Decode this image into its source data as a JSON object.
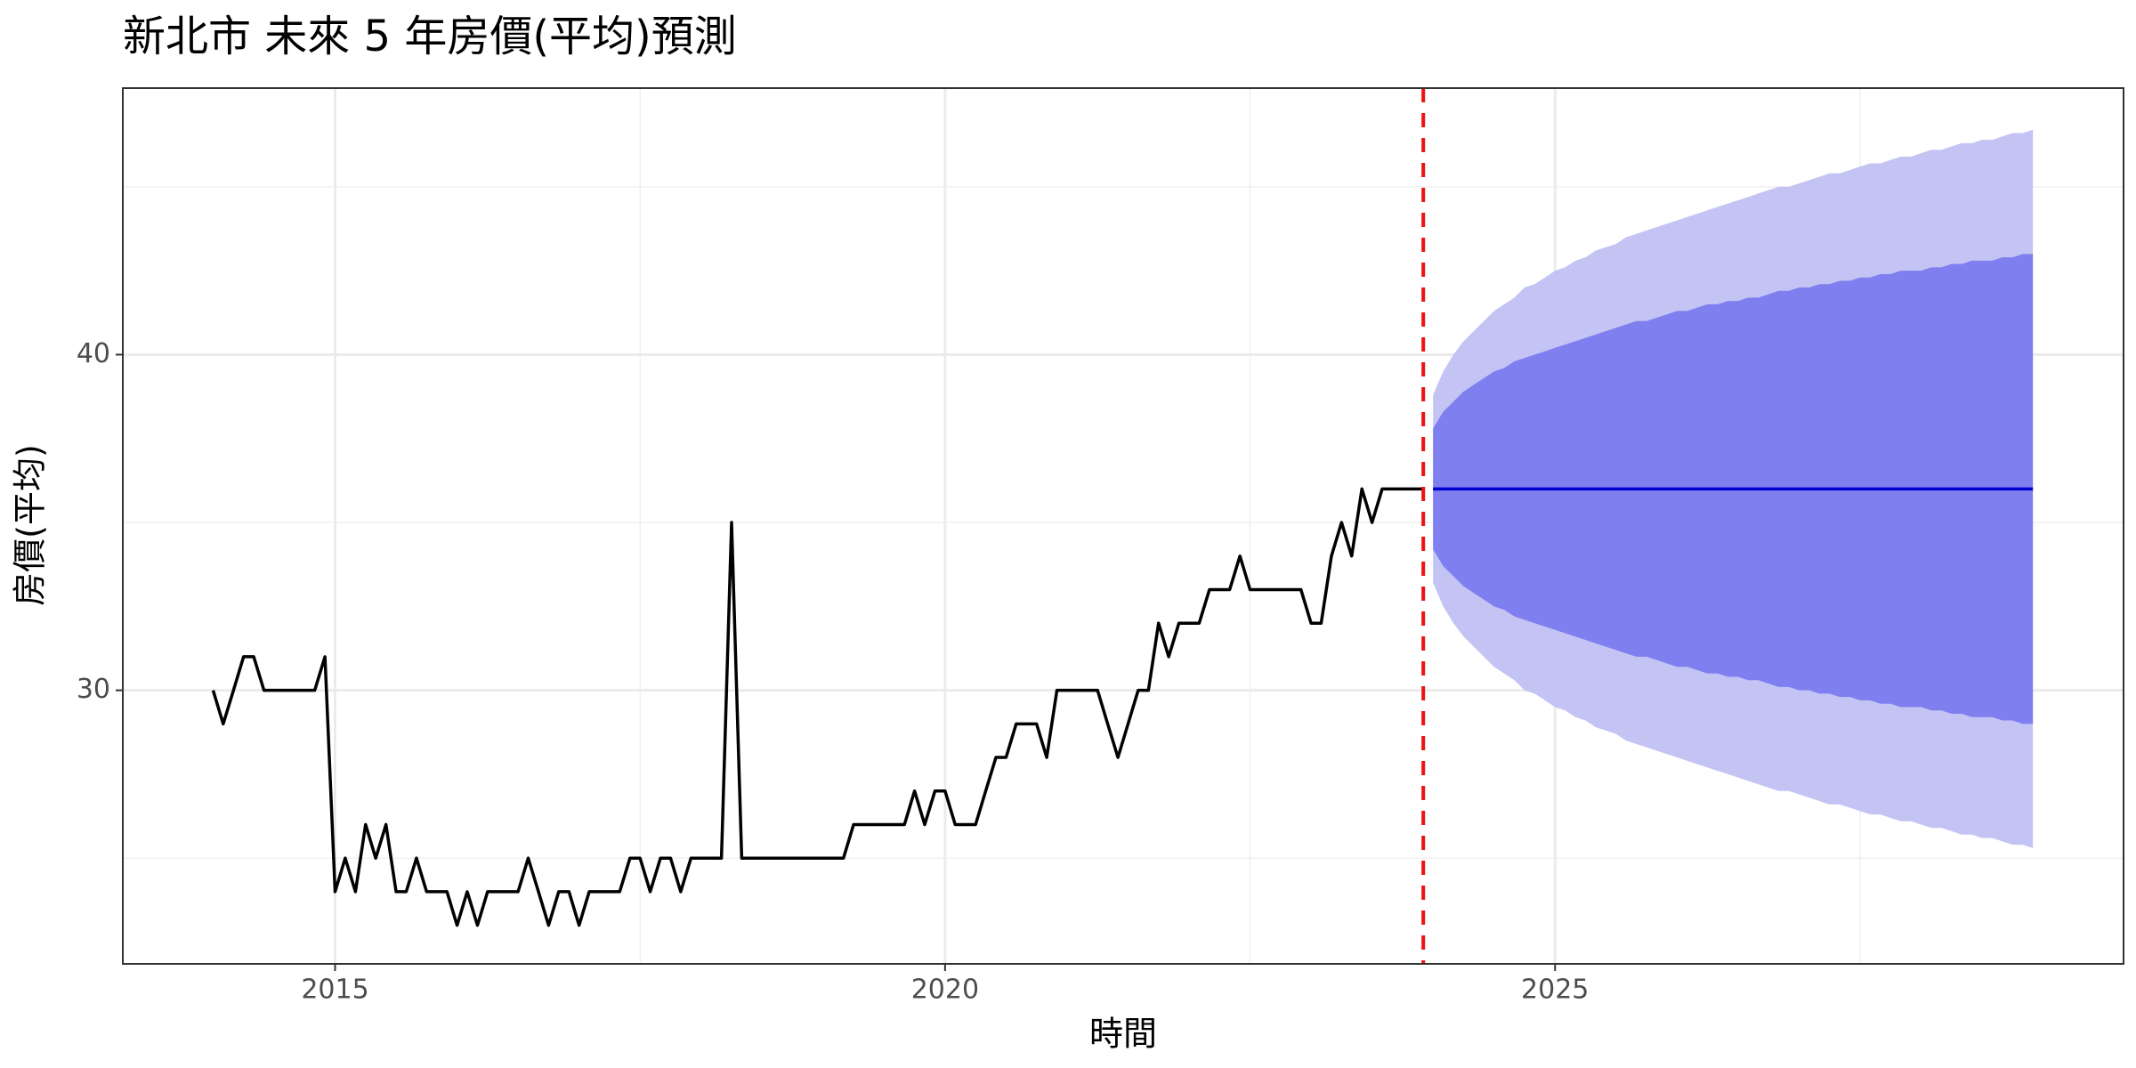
{
  "chart_data": {
    "type": "line",
    "title": "新北市 未來 5 年房價(平均)預測",
    "x_label": "時間",
    "y_label": "房價(平均)",
    "xlim": [
      2013.26,
      2029.66
    ],
    "ylim": [
      21.85,
      47.94
    ],
    "xticks": [
      2015,
      2020,
      2025
    ],
    "yticks": [
      30,
      40
    ],
    "x_minor_ticks": [
      2017.5,
      2022.5,
      2027.5
    ],
    "y_minor_ticks": [
      25,
      35,
      45
    ],
    "grid": true,
    "vline_x": 2023.92,
    "vline_color": "#ee1111",
    "history": {
      "color": "#000000",
      "x": [
        2014,
        2014.083,
        2014.167,
        2014.25,
        2014.333,
        2014.417,
        2014.5,
        2014.583,
        2014.667,
        2014.75,
        2014.833,
        2014.917,
        2015,
        2015.083,
        2015.167,
        2015.25,
        2015.333,
        2015.417,
        2015.5,
        2015.583,
        2015.667,
        2015.75,
        2015.833,
        2015.917,
        2016,
        2016.083,
        2016.167,
        2016.25,
        2016.333,
        2016.417,
        2016.5,
        2016.583,
        2016.667,
        2016.75,
        2016.833,
        2016.917,
        2017,
        2017.083,
        2017.167,
        2017.25,
        2017.333,
        2017.417,
        2017.5,
        2017.583,
        2017.667,
        2017.75,
        2017.833,
        2017.917,
        2018,
        2018.083,
        2018.167,
        2018.25,
        2018.333,
        2018.417,
        2018.5,
        2018.583,
        2018.667,
        2018.75,
        2018.833,
        2018.917,
        2019,
        2019.083,
        2019.167,
        2019.25,
        2019.333,
        2019.417,
        2019.5,
        2019.583,
        2019.667,
        2019.75,
        2019.833,
        2019.917,
        2020,
        2020.083,
        2020.167,
        2020.25,
        2020.333,
        2020.417,
        2020.5,
        2020.583,
        2020.667,
        2020.75,
        2020.833,
        2020.917,
        2021,
        2021.083,
        2021.167,
        2021.25,
        2021.333,
        2021.417,
        2021.5,
        2021.583,
        2021.667,
        2021.75,
        2021.833,
        2021.917,
        2022,
        2022.083,
        2022.167,
        2022.25,
        2022.333,
        2022.417,
        2022.5,
        2022.583,
        2022.667,
        2022.75,
        2022.833,
        2022.917,
        2023,
        2023.083,
        2023.167,
        2023.25,
        2023.333,
        2023.417,
        2023.5,
        2023.583,
        2023.667,
        2023.75,
        2023.833,
        2023.917
      ],
      "values": [
        30,
        29,
        30,
        31,
        31,
        30,
        30,
        30,
        30,
        30,
        30,
        31,
        24,
        25,
        24,
        26,
        25,
        26,
        24,
        24,
        25,
        24,
        24,
        24,
        23,
        24,
        23,
        24,
        24,
        24,
        24,
        25,
        24,
        23,
        24,
        24,
        23,
        24,
        24,
        24,
        24,
        25,
        25,
        24,
        25,
        25,
        24,
        25,
        25,
        25,
        25,
        35,
        25,
        25,
        25,
        25,
        25,
        25,
        25,
        25,
        25,
        25,
        25,
        26,
        26,
        26,
        26,
        26,
        26,
        27,
        26,
        27,
        27,
        26,
        26,
        26,
        27,
        28,
        28,
        29,
        29,
        29,
        28,
        30,
        30,
        30,
        30,
        30,
        29,
        28,
        29,
        30,
        30,
        32,
        31,
        32,
        32,
        32,
        33,
        33,
        33,
        34,
        33,
        33,
        33,
        33,
        33,
        33,
        32,
        32,
        34,
        35,
        34,
        36,
        35,
        36,
        36,
        36,
        36,
        36
      ]
    },
    "forecast": {
      "color": "#0000cc",
      "color80": "#7f7fef",
      "color95": "#c4c4f4",
      "x": [
        2024,
        2024.083,
        2024.167,
        2024.25,
        2024.333,
        2024.417,
        2024.5,
        2024.583,
        2024.667,
        2024.75,
        2024.833,
        2024.917,
        2025,
        2025.083,
        2025.167,
        2025.25,
        2025.333,
        2025.417,
        2025.5,
        2025.583,
        2025.667,
        2025.75,
        2025.833,
        2025.917,
        2026,
        2026.083,
        2026.167,
        2026.25,
        2026.333,
        2026.417,
        2026.5,
        2026.583,
        2026.667,
        2026.75,
        2026.833,
        2026.917,
        2027,
        2027.083,
        2027.167,
        2027.25,
        2027.333,
        2027.417,
        2027.5,
        2027.583,
        2027.667,
        2027.75,
        2027.833,
        2027.917,
        2028,
        2028.083,
        2028.167,
        2028.25,
        2028.333,
        2028.417,
        2028.5,
        2028.583,
        2028.667,
        2028.75,
        2028.833,
        2028.917
      ],
      "mean": [
        36,
        36,
        36,
        36,
        36,
        36,
        36,
        36,
        36,
        36,
        36,
        36,
        36,
        36,
        36,
        36,
        36,
        36,
        36,
        36,
        36,
        36,
        36,
        36,
        36,
        36,
        36,
        36,
        36,
        36,
        36,
        36,
        36,
        36,
        36,
        36,
        36,
        36,
        36,
        36,
        36,
        36,
        36,
        36,
        36,
        36,
        36,
        36,
        36,
        36,
        36,
        36,
        36,
        36,
        36,
        36,
        36,
        36,
        36,
        36
      ],
      "upper95": [
        38.8,
        39.5,
        40.0,
        40.4,
        40.7,
        41.0,
        41.3,
        41.5,
        41.7,
        42.0,
        42.1,
        42.3,
        42.5,
        42.6,
        42.8,
        42.9,
        43.1,
        43.2,
        43.3,
        43.5,
        43.6,
        43.7,
        43.8,
        43.9,
        44.0,
        44.1,
        44.2,
        44.3,
        44.4,
        44.5,
        44.6,
        44.7,
        44.8,
        44.9,
        45.0,
        45.0,
        45.1,
        45.2,
        45.3,
        45.4,
        45.4,
        45.5,
        45.6,
        45.7,
        45.7,
        45.8,
        45.9,
        45.9,
        46.0,
        46.1,
        46.1,
        46.2,
        46.3,
        46.3,
        46.4,
        46.4,
        46.5,
        46.6,
        46.6,
        46.7
      ],
      "lower95": [
        33.2,
        32.5,
        32.0,
        31.6,
        31.3,
        31.0,
        30.7,
        30.5,
        30.3,
        30.0,
        29.9,
        29.7,
        29.5,
        29.4,
        29.2,
        29.1,
        28.9,
        28.8,
        28.7,
        28.5,
        28.4,
        28.3,
        28.2,
        28.1,
        28.0,
        27.9,
        27.8,
        27.7,
        27.6,
        27.5,
        27.4,
        27.3,
        27.2,
        27.1,
        27.0,
        27.0,
        26.9,
        26.8,
        26.7,
        26.6,
        26.6,
        26.5,
        26.4,
        26.3,
        26.3,
        26.2,
        26.1,
        26.1,
        26.0,
        25.9,
        25.9,
        25.8,
        25.7,
        25.7,
        25.6,
        25.6,
        25.5,
        25.4,
        25.4,
        25.3
      ],
      "upper80": [
        37.8,
        38.3,
        38.6,
        38.9,
        39.1,
        39.3,
        39.5,
        39.6,
        39.8,
        39.9,
        40.0,
        40.1,
        40.2,
        40.3,
        40.4,
        40.5,
        40.6,
        40.7,
        40.8,
        40.9,
        41.0,
        41.0,
        41.1,
        41.2,
        41.3,
        41.3,
        41.4,
        41.5,
        41.5,
        41.6,
        41.6,
        41.7,
        41.7,
        41.8,
        41.9,
        41.9,
        42.0,
        42.0,
        42.1,
        42.1,
        42.2,
        42.2,
        42.3,
        42.3,
        42.4,
        42.4,
        42.5,
        42.5,
        42.5,
        42.6,
        42.6,
        42.7,
        42.7,
        42.8,
        42.8,
        42.8,
        42.9,
        42.9,
        43.0,
        43.0
      ],
      "lower80": [
        34.2,
        33.7,
        33.4,
        33.1,
        32.9,
        32.7,
        32.5,
        32.4,
        32.2,
        32.1,
        32.0,
        31.9,
        31.8,
        31.7,
        31.6,
        31.5,
        31.4,
        31.3,
        31.2,
        31.1,
        31.0,
        31.0,
        30.9,
        30.8,
        30.7,
        30.7,
        30.6,
        30.5,
        30.5,
        30.4,
        30.4,
        30.3,
        30.3,
        30.2,
        30.1,
        30.1,
        30.0,
        30.0,
        29.9,
        29.9,
        29.8,
        29.8,
        29.7,
        29.7,
        29.6,
        29.6,
        29.5,
        29.5,
        29.5,
        29.4,
        29.4,
        29.3,
        29.3,
        29.2,
        29.2,
        29.2,
        29.1,
        29.1,
        29.0,
        29.0
      ]
    }
  }
}
